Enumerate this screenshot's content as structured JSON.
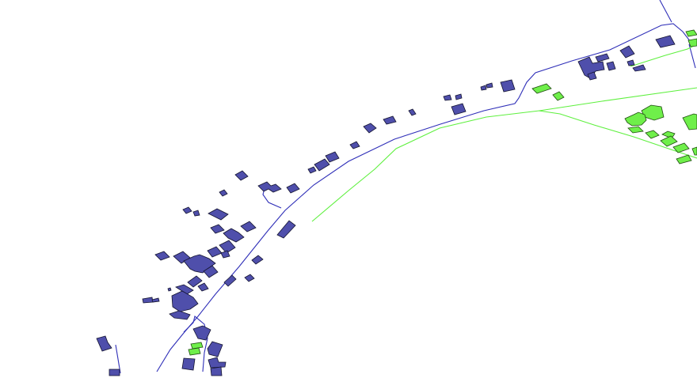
{
  "map": {
    "layer_colors": {
      "road_blue": "#2f2fb8",
      "road_green": "#5ef03e",
      "building_blue_fill": "#4f4fab",
      "building_green_fill": "#6fef4a",
      "background": "#ffffff"
    },
    "layers": [
      "roads-blue",
      "roads-green",
      "buildings-blue",
      "buildings-green"
    ]
  }
}
